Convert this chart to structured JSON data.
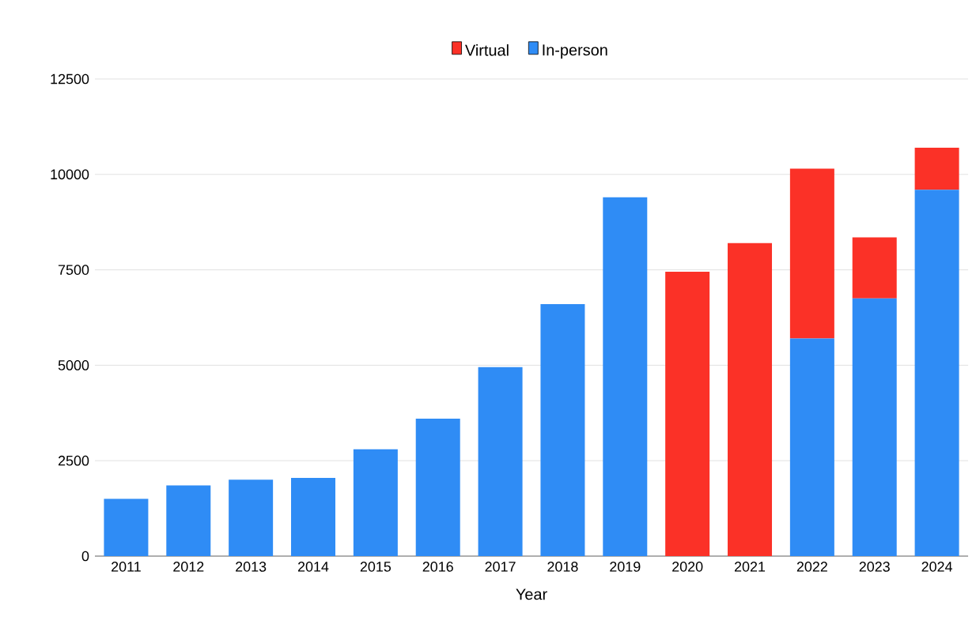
{
  "chart_data": {
    "type": "bar",
    "stacked": true,
    "xlabel": "Year",
    "categories": [
      "2011",
      "2012",
      "2013",
      "2014",
      "2015",
      "2016",
      "2017",
      "2018",
      "2019",
      "2020",
      "2021",
      "2022",
      "2023",
      "2024"
    ],
    "series": [
      {
        "name": "In-person",
        "color": "#2f8cf5",
        "values": [
          1500,
          1850,
          2000,
          2050,
          2800,
          3600,
          4950,
          6600,
          9400,
          null,
          null,
          5700,
          6750,
          9600
        ]
      },
      {
        "name": "Virtual",
        "color": "#fb3127",
        "values": [
          null,
          null,
          null,
          null,
          null,
          null,
          null,
          null,
          null,
          7450,
          8200,
          4450,
          1600,
          1100
        ]
      }
    ],
    "ylim": [
      0,
      12500
    ],
    "yticks": [
      0,
      2500,
      5000,
      7500,
      10000,
      12500
    ],
    "grid": "y",
    "legend": "top"
  }
}
